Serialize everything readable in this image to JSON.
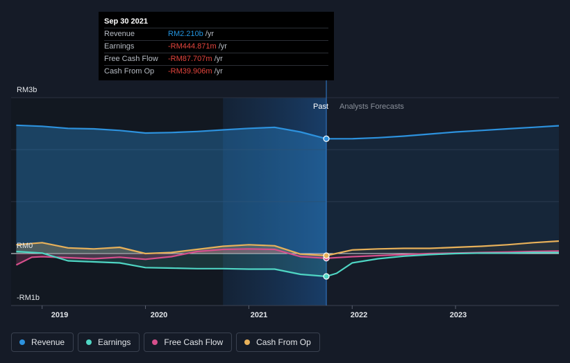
{
  "tooltip": {
    "date": "Sep 30 2021",
    "rows": [
      {
        "name": "Revenue",
        "value": "RM2.210b",
        "unit": "/yr",
        "color": "#2394df"
      },
      {
        "name": "Earnings",
        "value": "-RM444.871m",
        "unit": "/yr",
        "color": "#e4453d"
      },
      {
        "name": "Free Cash Flow",
        "value": "-RM87.707m",
        "unit": "/yr",
        "color": "#e4453d"
      },
      {
        "name": "Cash From Op",
        "value": "-RM39.906m",
        "unit": "/yr",
        "color": "#e4453d"
      }
    ]
  },
  "legend": [
    {
      "label": "Revenue",
      "color": "#2d92de"
    },
    {
      "label": "Earnings",
      "color": "#4fd6c4"
    },
    {
      "label": "Free Cash Flow",
      "color": "#d64f8c"
    },
    {
      "label": "Cash From Op",
      "color": "#e8b15a"
    }
  ],
  "chart_data": {
    "type": "line",
    "y_tick_labels": [
      "RM3b",
      "RM0",
      "-RM1b"
    ],
    "ylim": [
      -1.0,
      3.0
    ],
    "xlim": [
      2018.7,
      2024.0
    ],
    "x_ticks": [
      2019,
      2020,
      2021,
      2022,
      2023
    ],
    "x_tick_labels": [
      "2019",
      "2020",
      "2021",
      "2022",
      "2023"
    ],
    "regions": {
      "past_label": "Past",
      "forecast_label": "Analysts Forecasts",
      "divider_x": 2021.75,
      "highlight_start_x": 2020.75
    },
    "grid": true,
    "series": [
      {
        "name": "Revenue",
        "color": "#2d92de",
        "x": [
          2018.75,
          2019.0,
          2019.25,
          2019.5,
          2019.75,
          2020.0,
          2020.25,
          2020.5,
          2020.75,
          2021.0,
          2021.25,
          2021.5,
          2021.75,
          2022.0,
          2022.25,
          2022.5,
          2022.75,
          2023.0,
          2023.25,
          2023.5,
          2023.75,
          2024.0
        ],
        "y": [
          2.47,
          2.45,
          2.41,
          2.4,
          2.37,
          2.32,
          2.33,
          2.35,
          2.38,
          2.41,
          2.43,
          2.34,
          2.21,
          2.21,
          2.23,
          2.26,
          2.3,
          2.34,
          2.37,
          2.4,
          2.43,
          2.46
        ]
      },
      {
        "name": "Earnings",
        "color": "#4fd6c4",
        "x": [
          2018.75,
          2019.0,
          2019.25,
          2019.5,
          2019.75,
          2020.0,
          2020.25,
          2020.5,
          2020.75,
          2021.0,
          2021.25,
          2021.5,
          2021.75,
          2021.85,
          2022.0,
          2022.25,
          2022.5,
          2022.75,
          2023.0,
          2023.25,
          2023.5,
          2023.75,
          2024.0
        ],
        "y": [
          0.04,
          0.01,
          -0.14,
          -0.16,
          -0.18,
          -0.27,
          -0.28,
          -0.29,
          -0.29,
          -0.3,
          -0.3,
          -0.4,
          -0.44,
          -0.38,
          -0.18,
          -0.1,
          -0.05,
          -0.02,
          0.0,
          0.01,
          0.01,
          0.02,
          0.02
        ]
      },
      {
        "name": "Free Cash Flow",
        "color": "#d64f8c",
        "x": [
          2018.75,
          2018.9,
          2019.0,
          2019.25,
          2019.5,
          2019.75,
          2020.0,
          2020.25,
          2020.5,
          2020.75,
          2021.0,
          2021.25,
          2021.5,
          2021.75,
          2022.0,
          2022.25,
          2022.5,
          2022.75,
          2023.0,
          2023.25,
          2023.5,
          2023.75,
          2024.0
        ],
        "y": [
          -0.22,
          -0.07,
          -0.06,
          -0.08,
          -0.1,
          -0.07,
          -0.11,
          -0.06,
          0.04,
          0.08,
          0.09,
          0.08,
          -0.06,
          -0.09,
          -0.06,
          -0.04,
          -0.02,
          0.0,
          0.01,
          0.02,
          0.03,
          0.04,
          0.05
        ]
      },
      {
        "name": "Cash From Op",
        "color": "#e8b15a",
        "x": [
          2018.75,
          2019.0,
          2019.25,
          2019.5,
          2019.75,
          2020.0,
          2020.25,
          2020.5,
          2020.75,
          2021.0,
          2021.25,
          2021.5,
          2021.75,
          2022.0,
          2022.25,
          2022.5,
          2022.75,
          2023.0,
          2023.25,
          2023.5,
          2023.75,
          2024.0
        ],
        "y": [
          0.17,
          0.21,
          0.11,
          0.09,
          0.12,
          0.0,
          0.02,
          0.08,
          0.14,
          0.17,
          0.15,
          -0.01,
          -0.04,
          0.07,
          0.09,
          0.1,
          0.1,
          0.12,
          0.14,
          0.17,
          0.21,
          0.24
        ]
      }
    ],
    "highlight_points": [
      {
        "series": "Revenue",
        "x": 2021.75,
        "y": 2.21
      },
      {
        "series": "Earnings",
        "x": 2021.75,
        "y": -0.44
      },
      {
        "series": "Free Cash Flow",
        "x": 2021.75,
        "y": -0.09
      },
      {
        "series": "Cash From Op",
        "x": 2021.75,
        "y": -0.04
      }
    ]
  }
}
